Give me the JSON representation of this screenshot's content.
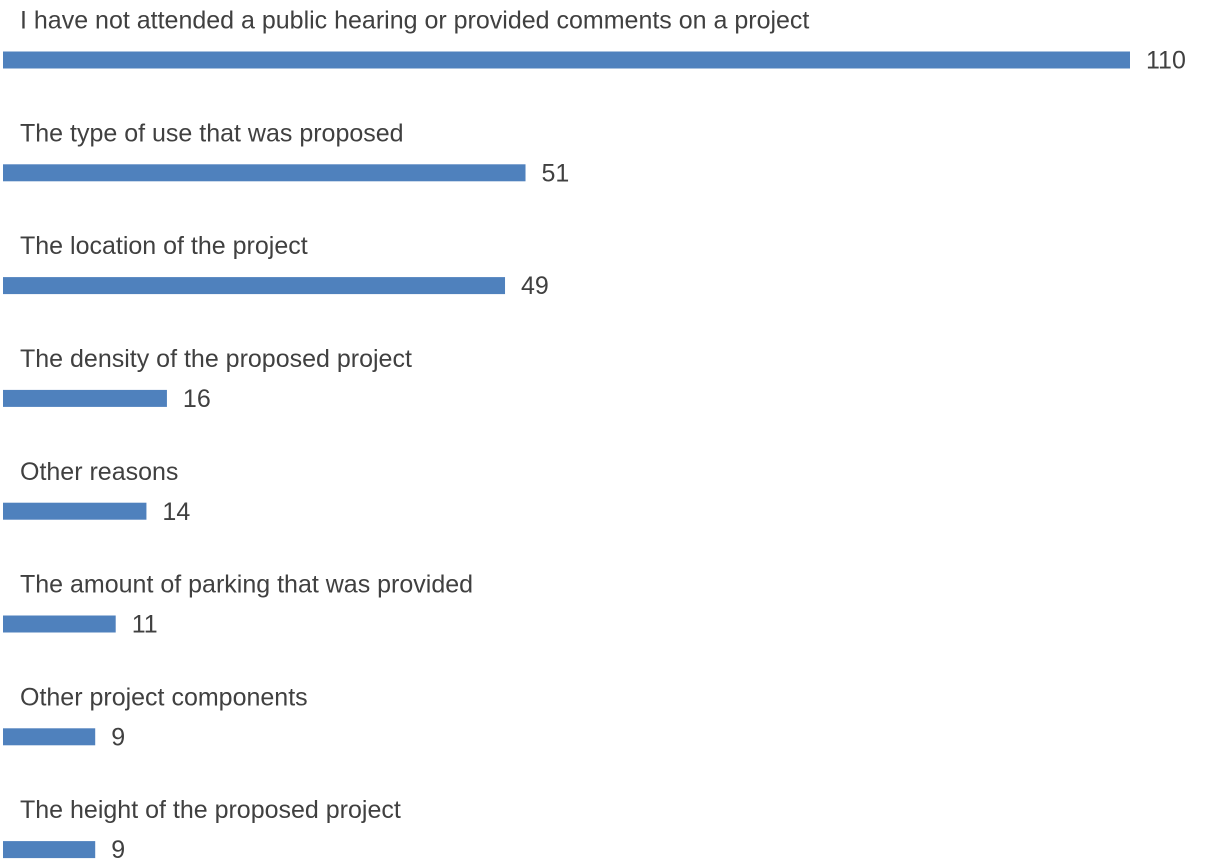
{
  "chart_data": {
    "type": "bar",
    "orientation": "horizontal",
    "categories": [
      "I have not attended a public hearing or provided comments on a project",
      "The type of use that was proposed",
      "The location of the project",
      "The density of the proposed project",
      "Other reasons",
      "The amount of parking that was provided",
      "Other project components",
      "The height of the proposed project"
    ],
    "values": [
      110,
      51,
      49,
      16,
      14,
      11,
      9,
      9
    ],
    "color": "#4f81bd"
  }
}
